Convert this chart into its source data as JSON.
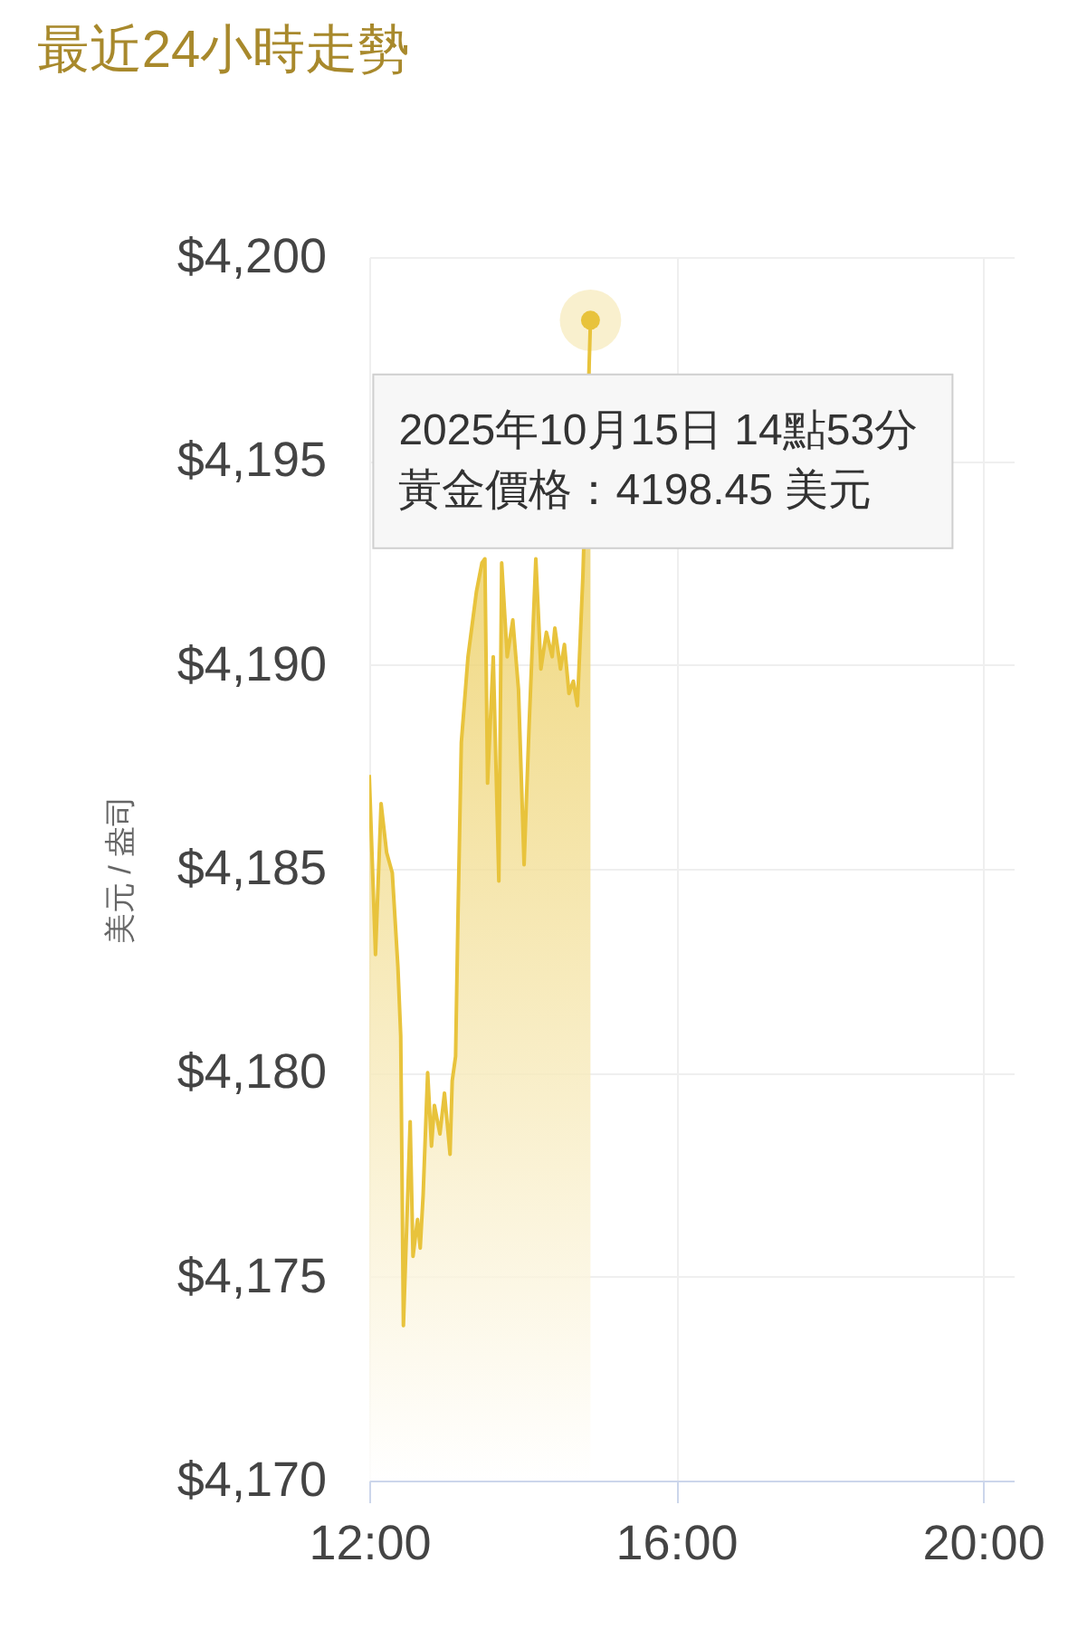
{
  "chart_data": {
    "type": "area",
    "title": "最近24小時走勢",
    "ylabel": "美元 / 盎司",
    "x": [
      12.0,
      12.081,
      12.154,
      12.226,
      12.3,
      12.373,
      12.41,
      12.445,
      12.533,
      12.57,
      12.629,
      12.664,
      12.702,
      12.761,
      12.811,
      12.849,
      12.921,
      12.98,
      13.053,
      13.081,
      13.125,
      13.156,
      13.2,
      13.287,
      13.397,
      13.469,
      13.507,
      13.542,
      13.616,
      13.689,
      13.726,
      13.798,
      13.871,
      13.945,
      14.018,
      14.083,
      14.171,
      14.237,
      14.309,
      14.384,
      14.419,
      14.493,
      14.544,
      14.603,
      14.66,
      14.713,
      14.785,
      14.8833
    ],
    "values": [
      4187.3,
      4182.9,
      4186.6,
      4185.4,
      4184.9,
      4182.6,
      4180.9,
      4173.8,
      4178.8,
      4175.5,
      4176.4,
      4175.7,
      4177.0,
      4180.0,
      4178.2,
      4179.2,
      4178.5,
      4179.5,
      4178.0,
      4179.8,
      4180.4,
      4183.8,
      4188.1,
      4190.2,
      4191.8,
      4192.5,
      4192.6,
      4187.1,
      4190.2,
      4184.7,
      4192.5,
      4190.2,
      4191.1,
      4189.4,
      4185.1,
      4188.5,
      4192.6,
      4189.9,
      4190.8,
      4190.2,
      4190.9,
      4189.9,
      4190.5,
      4189.3,
      4189.6,
      4189.0,
      4192.2,
      4198.45
    ],
    "color": "#e8c33c",
    "xlim": [
      12,
      20.4
    ],
    "xticks": [
      {
        "value": 12,
        "label": "12:00"
      },
      {
        "value": 16,
        "label": "16:00"
      },
      {
        "value": 20,
        "label": "20:00"
      }
    ],
    "ylim": [
      4170,
      4200
    ],
    "yticks": [
      {
        "value": 4170,
        "label": "$4,170"
      },
      {
        "value": 4175,
        "label": "$4,175"
      },
      {
        "value": 4180,
        "label": "$4,180"
      },
      {
        "value": 4185,
        "label": "$4,185"
      },
      {
        "value": 4190,
        "label": "$4,190"
      },
      {
        "value": 4195,
        "label": "$4,195"
      },
      {
        "value": 4200,
        "label": "$4,200"
      }
    ],
    "grid": true,
    "annotations": [
      {
        "text": "2025年10月15日 14點53分",
        "x": 14.8833,
        "y": 4198.45
      },
      "黃金價格：4198.45 美元"
    ]
  }
}
